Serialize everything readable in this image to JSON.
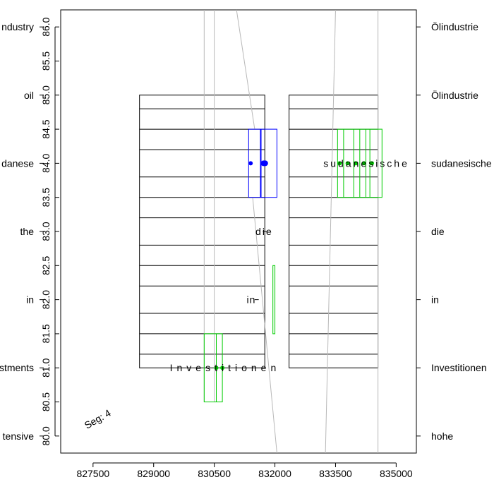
{
  "chart_data": {
    "type": "scatter",
    "title": "",
    "xlabel": "",
    "ylabel": "",
    "xlim": [
      826700,
      835500
    ],
    "ylim": [
      79.75,
      86.25
    ],
    "x_ticks": [
      827500,
      829000,
      830500,
      832000,
      833500,
      835000
    ],
    "x_tick_labels": [
      "827500",
      "829000",
      "830500",
      "832000",
      "833500",
      "835000"
    ],
    "y_ticks": [
      80.0,
      80.5,
      81.0,
      81.5,
      82.0,
      82.5,
      83.0,
      83.5,
      84.0,
      84.5,
      85.0,
      85.5,
      86.0
    ],
    "y_tick_labels": [
      "80.0",
      "80.5",
      "81.0",
      "81.5",
      "82.0",
      "82.5",
      "83.0",
      "83.5",
      "84.0",
      "84.5",
      "85.0",
      "85.5",
      "86.0"
    ],
    "left_labels": [
      {
        "y": 86,
        "text": "ndustry"
      },
      {
        "y": 85,
        "text": "oil"
      },
      {
        "y": 84,
        "text": "danese"
      },
      {
        "y": 83,
        "text": "the"
      },
      {
        "y": 82,
        "text": "in"
      },
      {
        "y": 81,
        "text": "stments"
      },
      {
        "y": 80,
        "text": "tensive"
      }
    ],
    "right_labels": [
      {
        "y": 86,
        "text": "Ölindustrie"
      },
      {
        "y": 85,
        "text": "Ölindustrie"
      },
      {
        "y": 84,
        "text": "sudanesische"
      },
      {
        "y": 83,
        "text": "die"
      },
      {
        "y": 82,
        "text": "in"
      },
      {
        "y": 81,
        "text": "Investitionen"
      },
      {
        "y": 80,
        "text": "hohe"
      }
    ],
    "grids": [
      {
        "x0": 828650,
        "x1": 831750,
        "y0": 81.0,
        "y1": 85.0,
        "rows": [
          81.2,
          81.5,
          81.8,
          82.2,
          82.5,
          82.8,
          83.2,
          83.5,
          83.8,
          84.2,
          84.5,
          84.8
        ]
      },
      {
        "x0": 832350,
        "x1": 834550,
        "y0": 81.0,
        "y1": 85.0,
        "rows": [
          81.2,
          81.5,
          81.8,
          82.2,
          82.5,
          82.8,
          83.2,
          83.5,
          83.8,
          84.2,
          84.5,
          84.8
        ]
      }
    ],
    "gray_lines": [
      {
        "x0": 830250,
        "x1": 830250,
        "y0": 86.25,
        "y1": 80.5
      },
      {
        "x0": 830500,
        "x1": 830500,
        "y0": 86.25,
        "y1": 80.5
      },
      {
        "x0": 831050,
        "x1": 831500,
        "y0": 86.25,
        "y1": 84.5
      },
      {
        "x0": 831450,
        "x1": 832050,
        "y0": 83.5,
        "y1": 79.75
      },
      {
        "x0": 833250,
        "x1": 833500,
        "y0": 79.75,
        "y1": 86.25
      },
      {
        "x0": 834550,
        "x1": 834550,
        "y0": 79.75,
        "y1": 86.25
      }
    ],
    "boxes": [
      {
        "color": "#0000ff",
        "x0": 831350,
        "x1": 832050,
        "y0": 83.5,
        "y1": 84.5,
        "stroke": 1
      },
      {
        "color": "#00cc00",
        "x0": 830250,
        "x1": 830700,
        "y0": 80.5,
        "y1": 81.5,
        "stroke": 1
      },
      {
        "color": "#00cc00",
        "x0": 833550,
        "x1": 834650,
        "y0": 83.5,
        "y1": 84.5,
        "stroke": 1
      },
      {
        "color": "#00cc00",
        "x0": 831950,
        "x1": 832000,
        "y0": 81.5,
        "y1": 82.5,
        "stroke": 1
      }
    ],
    "vlines": [
      {
        "color": "#0000ff",
        "x": 831650,
        "y0": 83.5,
        "y1": 84.5,
        "width": 2
      },
      {
        "color": "#00cc00",
        "x": 830550,
        "y0": 80.5,
        "y1": 81.5,
        "width": 1
      },
      {
        "color": "#00cc00",
        "x": 833700,
        "y0": 83.5,
        "y1": 84.5,
        "width": 1
      },
      {
        "color": "#00cc00",
        "x": 833950,
        "y0": 83.5,
        "y1": 84.5,
        "width": 1
      },
      {
        "color": "#00cc00",
        "x": 834100,
        "y0": 83.5,
        "y1": 84.5,
        "width": 1
      },
      {
        "color": "#00cc00",
        "x": 834250,
        "y0": 83.5,
        "y1": 84.5,
        "width": 1
      },
      {
        "color": "#00cc00",
        "x": 834350,
        "y0": 83.5,
        "y1": 84.5,
        "width": 1
      }
    ],
    "points": [
      {
        "color": "#0000ff",
        "x": 831400,
        "y": 84.0,
        "r": 3
      },
      {
        "color": "#0000ff",
        "x": 831720,
        "y": 84.0,
        "r": 4
      },
      {
        "color": "#0000ff",
        "x": 831760,
        "y": 84.0,
        "r": 4
      },
      {
        "color": "#00cc00",
        "x": 830550,
        "y": 81.0,
        "r": 3
      },
      {
        "color": "#00cc00",
        "x": 830700,
        "y": 81.0,
        "r": 3
      },
      {
        "color": "#00cc00",
        "x": 833600,
        "y": 84.0,
        "r": 3
      },
      {
        "color": "#00cc00",
        "x": 833800,
        "y": 84.0,
        "r": 3
      },
      {
        "color": "#00cc00",
        "x": 834000,
        "y": 84.0,
        "r": 3
      },
      {
        "color": "#00cc00",
        "x": 834200,
        "y": 84.0,
        "r": 3
      },
      {
        "color": "#00cc00",
        "x": 834400,
        "y": 84.0,
        "r": 3
      }
    ],
    "dashes": [
      {
        "x0": 831700,
        "x1": 831800,
        "y": 83.0
      },
      {
        "x0": 831500,
        "x1": 831600,
        "y": 82.0
      }
    ],
    "word_labels": [
      {
        "x": 831520,
        "y": 83.0,
        "text": "die",
        "spacing": 2
      },
      {
        "x": 831300,
        "y": 82.0,
        "text": "in",
        "spacing": 1
      },
      {
        "x": 829400,
        "y": 81.0,
        "text": "Investitionen",
        "spacing": 6
      },
      {
        "x": 833200,
        "y": 84.0,
        "text": "sudanesische",
        "spacing": 3
      }
    ],
    "annotation": {
      "text": "Seg: 4",
      "x": 827350,
      "y": 80.1,
      "rotate": -30
    }
  }
}
